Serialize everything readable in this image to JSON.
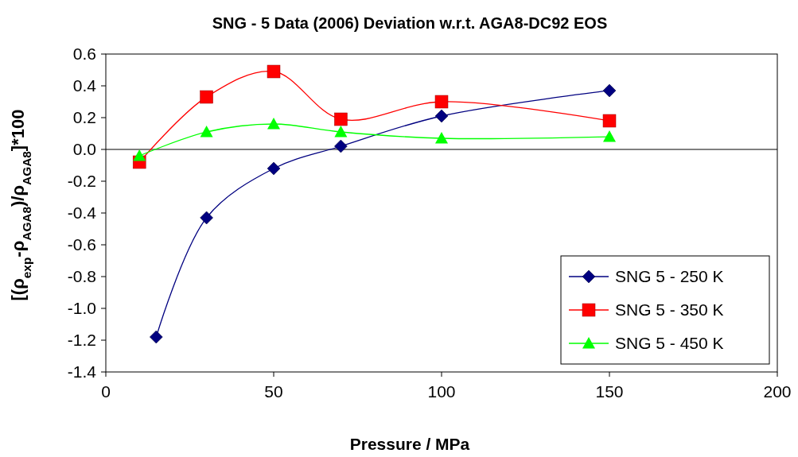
{
  "chart_data": {
    "type": "line",
    "title": "SNG - 5 Data (2006) Deviation w.r.t. AGA8-DC92 EOS",
    "xlabel": "Pressure / MPa",
    "ylabel": "[(ρ$_{exp}$-ρ$_{AGA8}$)/ρ$_{AGA8}$]*100",
    "xlim": [
      0,
      200
    ],
    "xticks": [
      0,
      50,
      100,
      150,
      200
    ],
    "ylim": [
      -1.4,
      0.6
    ],
    "yticks": [
      {
        "value": -1.4,
        "label": "-1.4"
      },
      {
        "value": -1.2,
        "label": "-1.2"
      },
      {
        "value": -1.0,
        "label": "-1.0"
      },
      {
        "value": -0.8,
        "label": "-0.8"
      },
      {
        "value": -0.6,
        "label": "-0.6"
      },
      {
        "value": -0.4,
        "label": "-0.4"
      },
      {
        "value": -0.2,
        "label": "-0.2"
      },
      {
        "value": 0,
        "label": "0.0"
      },
      {
        "value": 0.2,
        "label": "0.2"
      },
      {
        "value": 0.4,
        "label": "0.4"
      },
      {
        "value": 0.6,
        "label": "0.6"
      }
    ],
    "grid": false,
    "legend": "bottom right",
    "ref_lines": [
      {
        "axis": "y",
        "value": 0,
        "color": "#000000"
      }
    ],
    "series": [
      {
        "name": "SNG 5 - 250 K",
        "color": "#000080",
        "marker": "diamond",
        "x": [
          15,
          30,
          50,
          70,
          100,
          150
        ],
        "values": [
          -1.18,
          -0.43,
          -0.12,
          0.02,
          0.21,
          0.37
        ]
      },
      {
        "name": "SNG 5 - 350 K",
        "color": "#ff0000",
        "marker": "square",
        "x": [
          10,
          30,
          50,
          70,
          100,
          150
        ],
        "values": [
          -0.08,
          0.33,
          0.49,
          0.19,
          0.3,
          0.18
        ]
      },
      {
        "name": "SNG 5 - 450 K",
        "color": "#00ff00",
        "marker": "triangle",
        "x": [
          10,
          30,
          50,
          70,
          100,
          150
        ],
        "values": [
          -0.04,
          0.11,
          0.16,
          0.11,
          0.07,
          0.08
        ]
      }
    ]
  }
}
